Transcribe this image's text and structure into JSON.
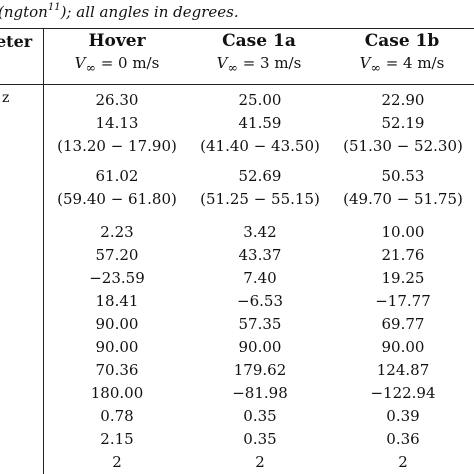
{
  "caption": {
    "prefix": "ngton",
    "sup": "11",
    "suffix": "); all angles in degrees."
  },
  "header": {
    "param": "eter",
    "param_row_label": "z",
    "cols": [
      {
        "title": "Hover",
        "sub_var": "V",
        "sub_inf": "∞",
        "sub_val": " = 0 m/s"
      },
      {
        "title": "Case 1a",
        "sub_var": "V",
        "sub_inf": "∞",
        "sub_val": " = 3 m/s"
      },
      {
        "title": "Case 1b",
        "sub_var": "V",
        "sub_inf": "∞",
        "sub_val": " = 4 m/s"
      }
    ]
  },
  "rows": [
    [
      "26.30",
      "25.00",
      "22.90"
    ],
    [
      "14.13",
      "41.59",
      "52.19"
    ],
    [
      "(13.20 − 17.90)",
      "(41.40 − 43.50)",
      "(51.30 − 52.30)"
    ],
    [
      "61.02",
      "52.69",
      "50.53"
    ],
    [
      "(59.40 − 61.80)",
      "(51.25 − 55.15)",
      "(49.70 − 51.75)"
    ],
    [
      "2.23",
      "3.42",
      "10.00"
    ],
    [
      "57.20",
      "43.37",
      "21.76"
    ],
    [
      "−23.59",
      "7.40",
      "19.25"
    ],
    [
      "18.41",
      "−6.53",
      "−17.77"
    ],
    [
      "90.00",
      "57.35",
      "69.77"
    ],
    [
      "90.00",
      "90.00",
      "90.00"
    ],
    [
      "70.36",
      "179.62",
      "124.87"
    ],
    [
      "180.00",
      "−81.98",
      "−122.94"
    ],
    [
      "0.78",
      "0.35",
      "0.39"
    ],
    [
      "2.15",
      "0.35",
      "0.36"
    ],
    [
      "2",
      "2",
      "2"
    ]
  ]
}
